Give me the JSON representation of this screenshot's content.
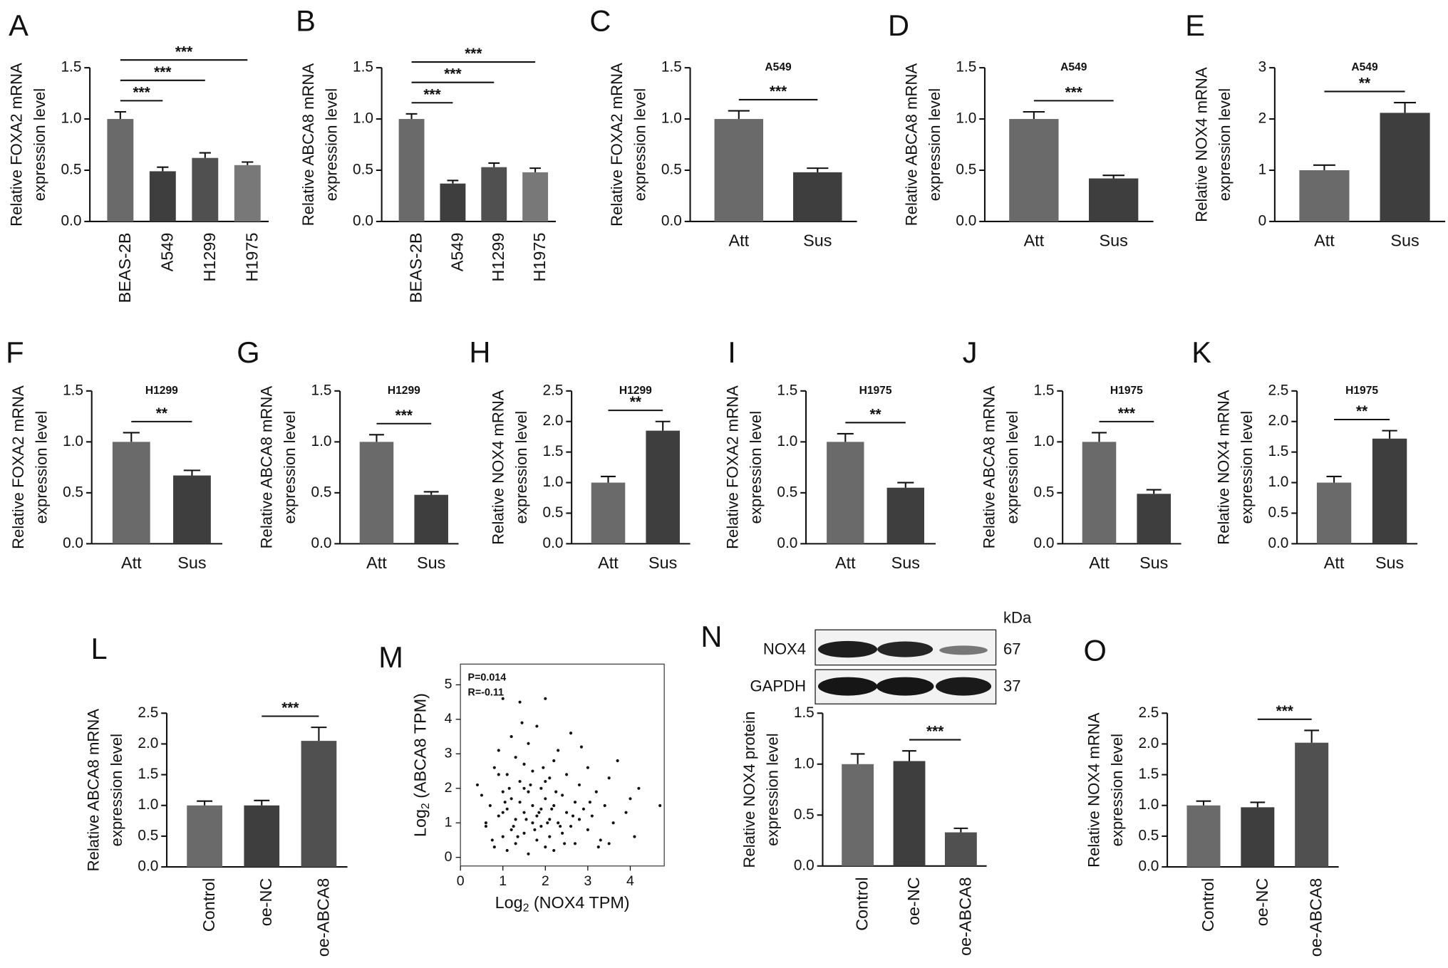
{
  "chart_data": [
    {
      "type": "bar",
      "panel": "A",
      "y_label": [
        "Relative FOXA2 mRNA",
        "expression level"
      ],
      "categories": [
        "BEAS-2B",
        "A549",
        "H1299",
        "H1975"
      ],
      "values": [
        1.0,
        0.49,
        0.62,
        0.55
      ],
      "errors": [
        0.07,
        0.04,
        0.05,
        0.03
      ],
      "colors": [
        "#6a6a6a",
        "#3e3e3e",
        "#505050",
        "#787878"
      ],
      "ylim": [
        0,
        1.5
      ],
      "yticks": [
        {
          "value": 0,
          "label": "0.0"
        },
        0.5,
        {
          "value": 1,
          "label": "1.0"
        },
        1.5
      ],
      "comparisons": [
        {
          "groups": [
            0,
            1
          ],
          "label": "***"
        },
        {
          "groups": [
            0,
            2
          ],
          "label": "***"
        },
        {
          "groups": [
            0,
            3
          ],
          "label": "***"
        }
      ]
    },
    {
      "type": "bar",
      "panel": "B",
      "y_label": [
        "Relative ABCA8 mRNA",
        "expression level"
      ],
      "categories": [
        "BEAS-2B",
        "A549",
        "H1299",
        "H1975"
      ],
      "values": [
        1.0,
        0.37,
        0.53,
        0.48
      ],
      "errors": [
        0.05,
        0.03,
        0.04,
        0.04
      ],
      "colors": [
        "#6a6a6a",
        "#3e3e3e",
        "#505050",
        "#787878"
      ],
      "ylim": [
        0,
        1.5
      ],
      "yticks": [
        {
          "value": 0,
          "label": "0.0"
        },
        0.5,
        {
          "value": 1,
          "label": "1.0"
        },
        1.5
      ],
      "comparisons": [
        {
          "groups": [
            0,
            1
          ],
          "label": "***"
        },
        {
          "groups": [
            0,
            2
          ],
          "label": "***"
        },
        {
          "groups": [
            0,
            3
          ],
          "label": "***"
        }
      ]
    },
    {
      "type": "bar",
      "panel": "C",
      "title": "A549",
      "y_label": [
        "Relative FOXA2 mRNA",
        "expression level"
      ],
      "categories": [
        "Att",
        "Sus"
      ],
      "values": [
        1.0,
        0.48
      ],
      "errors": [
        0.08,
        0.04
      ],
      "colors": [
        "#6a6a6a",
        "#3e3e3e"
      ],
      "ylim": [
        0,
        1.5
      ],
      "yticks": [
        {
          "value": 0,
          "label": "0.0"
        },
        0.5,
        {
          "value": 1,
          "label": "1.0"
        },
        1.5
      ],
      "comparisons": [
        {
          "groups": [
            0,
            1
          ],
          "label": "***"
        }
      ]
    },
    {
      "type": "bar",
      "panel": "D",
      "title": "A549",
      "y_label": [
        "Relative ABCA8 mRNA",
        "expression level"
      ],
      "categories": [
        "Att",
        "Sus"
      ],
      "values": [
        1.0,
        0.42
      ],
      "errors": [
        0.07,
        0.03
      ],
      "colors": [
        "#6a6a6a",
        "#3e3e3e"
      ],
      "ylim": [
        0,
        1.5
      ],
      "yticks": [
        {
          "value": 0,
          "label": "0.0"
        },
        0.5,
        {
          "value": 1,
          "label": "1.0"
        },
        1.5
      ],
      "comparisons": [
        {
          "groups": [
            0,
            1
          ],
          "label": "***"
        }
      ]
    },
    {
      "type": "bar",
      "panel": "E",
      "title": "A549",
      "y_label": [
        "Relative NOX4 mRNA",
        "expression level"
      ],
      "categories": [
        "Att",
        "Sus"
      ],
      "values": [
        1.0,
        2.12
      ],
      "errors": [
        0.1,
        0.2
      ],
      "colors": [
        "#6a6a6a",
        "#3e3e3e"
      ],
      "ylim": [
        0,
        3
      ],
      "yticks": [
        0,
        1,
        2,
        3
      ],
      "comparisons": [
        {
          "groups": [
            0,
            1
          ],
          "label": "**"
        }
      ]
    },
    {
      "type": "bar",
      "panel": "F",
      "title": "H1299",
      "y_label": [
        "Relative FOXA2 mRNA",
        "expression level"
      ],
      "categories": [
        "Att",
        "Sus"
      ],
      "values": [
        1.0,
        0.67
      ],
      "errors": [
        0.09,
        0.05
      ],
      "colors": [
        "#6a6a6a",
        "#3e3e3e"
      ],
      "ylim": [
        0,
        1.5
      ],
      "yticks": [
        {
          "value": 0,
          "label": "0.0"
        },
        0.5,
        {
          "value": 1,
          "label": "1.0"
        },
        1.5
      ],
      "comparisons": [
        {
          "groups": [
            0,
            1
          ],
          "label": "**"
        }
      ]
    },
    {
      "type": "bar",
      "panel": "G",
      "title": "H1299",
      "y_label": [
        "Relative ABCA8 mRNA",
        "expression level"
      ],
      "categories": [
        "Att",
        "Sus"
      ],
      "values": [
        1.0,
        0.48
      ],
      "errors": [
        0.07,
        0.03
      ],
      "colors": [
        "#6a6a6a",
        "#3e3e3e"
      ],
      "ylim": [
        0,
        1.5
      ],
      "yticks": [
        {
          "value": 0,
          "label": "0.0"
        },
        0.5,
        {
          "value": 1,
          "label": "1.0"
        },
        1.5
      ],
      "comparisons": [
        {
          "groups": [
            0,
            1
          ],
          "label": "***"
        }
      ]
    },
    {
      "type": "bar",
      "panel": "H",
      "title": "H1299",
      "y_label": [
        "Relative NOX4 mRNA",
        "expression level"
      ],
      "categories": [
        "Att",
        "Sus"
      ],
      "values": [
        1.0,
        1.85
      ],
      "errors": [
        0.1,
        0.15
      ],
      "colors": [
        "#6a6a6a",
        "#3e3e3e"
      ],
      "ylim": [
        0,
        2.5
      ],
      "yticks": [
        {
          "value": 0,
          "label": "0.0"
        },
        0.5,
        {
          "value": 1,
          "label": "1.0"
        },
        1.5,
        {
          "value": 2,
          "label": "2.0"
        },
        2.5
      ],
      "comparisons": [
        {
          "groups": [
            0,
            1
          ],
          "label": "**"
        }
      ]
    },
    {
      "type": "bar",
      "panel": "I",
      "title": "H1975",
      "y_label": [
        "Relative FOXA2 mRNA",
        "expression level"
      ],
      "categories": [
        "Att",
        "Sus"
      ],
      "values": [
        1.0,
        0.55
      ],
      "errors": [
        0.08,
        0.05
      ],
      "colors": [
        "#6a6a6a",
        "#3e3e3e"
      ],
      "ylim": [
        0,
        1.5
      ],
      "yticks": [
        {
          "value": 0,
          "label": "0.0"
        },
        0.5,
        {
          "value": 1,
          "label": "1.0"
        },
        1.5
      ],
      "comparisons": [
        {
          "groups": [
            0,
            1
          ],
          "label": "**"
        }
      ]
    },
    {
      "type": "bar",
      "panel": "J",
      "title": "H1975",
      "y_label": [
        "Relative ABCA8 mRNA",
        "expression level"
      ],
      "categories": [
        "Att",
        "Sus"
      ],
      "values": [
        1.0,
        0.49
      ],
      "errors": [
        0.09,
        0.04
      ],
      "colors": [
        "#6a6a6a",
        "#3e3e3e"
      ],
      "ylim": [
        0,
        1.5
      ],
      "yticks": [
        {
          "value": 0,
          "label": "0.0"
        },
        0.5,
        {
          "value": 1,
          "label": "1.0"
        },
        1.5
      ],
      "comparisons": [
        {
          "groups": [
            0,
            1
          ],
          "label": "***"
        }
      ]
    },
    {
      "type": "bar",
      "panel": "K",
      "title": "H1975",
      "y_label": [
        "Relative NOX4 mRNA",
        "expression level"
      ],
      "categories": [
        "Att",
        "Sus"
      ],
      "values": [
        1.0,
        1.72
      ],
      "errors": [
        0.1,
        0.13
      ],
      "colors": [
        "#6a6a6a",
        "#3e3e3e"
      ],
      "ylim": [
        0,
        2.5
      ],
      "yticks": [
        {
          "value": 0,
          "label": "0.0"
        },
        0.5,
        {
          "value": 1,
          "label": "1.0"
        },
        1.5,
        {
          "value": 2,
          "label": "2.0"
        },
        2.5
      ],
      "comparisons": [
        {
          "groups": [
            0,
            1
          ],
          "label": "**"
        }
      ]
    },
    {
      "type": "bar",
      "panel": "L",
      "y_label": [
        "Relative ABCA8 mRNA",
        "expression level"
      ],
      "categories": [
        "Control",
        "oe-NC",
        "oe-ABCA8"
      ],
      "values": [
        1.0,
        1.0,
        2.05
      ],
      "errors": [
        0.07,
        0.08,
        0.22
      ],
      "colors": [
        "#6a6a6a",
        "#3e3e3e",
        "#505050"
      ],
      "ylim": [
        0,
        2.5
      ],
      "yticks": [
        {
          "value": 0,
          "label": "0.0"
        },
        0.5,
        {
          "value": 1,
          "label": "1.0"
        },
        1.5,
        {
          "value": 2,
          "label": "2.0"
        },
        2.5
      ],
      "comparisons": [
        {
          "groups": [
            1,
            2
          ],
          "label": "***"
        }
      ]
    },
    {
      "type": "scatter",
      "panel": "M",
      "annotations": [
        "P=0.014",
        "R=-0.11"
      ],
      "x_label": [
        "Log",
        "2",
        " (NOX4 TPM)"
      ],
      "y_label": [
        "Log",
        "2",
        " (ABCA8 TPM)"
      ],
      "x": [
        0.4,
        0.5,
        0.6,
        0.7,
        0.8,
        0.8,
        0.9,
        0.9,
        1.0,
        1.0,
        1.0,
        1.1,
        1.1,
        1.1,
        1.2,
        1.2,
        1.2,
        1.3,
        1.3,
        1.3,
        1.4,
        1.4,
        1.4,
        1.5,
        1.5,
        1.5,
        1.6,
        1.6,
        1.6,
        1.7,
        1.7,
        1.7,
        1.8,
        1.8,
        1.8,
        1.9,
        1.9,
        1.9,
        2.0,
        2.0,
        2.0,
        2.1,
        2.1,
        2.1,
        2.2,
        2.2,
        2.2,
        2.3,
        2.3,
        2.4,
        2.4,
        2.5,
        2.5,
        2.6,
        2.6,
        2.7,
        2.7,
        2.8,
        2.8,
        2.9,
        3.0,
        3.0,
        3.1,
        3.2,
        3.3,
        3.4,
        3.5,
        3.6,
        3.7,
        3.9,
        4.0,
        4.1,
        4.2,
        4.7,
        0.6,
        0.9,
        1.05,
        1.25,
        1.45,
        1.65,
        1.85,
        2.05,
        2.25,
        2.45,
        2.65,
        2.85,
        3.05,
        3.25,
        1.15,
        1.35,
        1.55,
        1.75,
        1.95,
        2.15,
        0.75,
        1.0,
        1.5,
        2.0,
        2.35,
        3.5
      ],
      "values": [
        2.1,
        1.8,
        0.9,
        1.5,
        2.6,
        0.3,
        1.2,
        3.1,
        0.6,
        1.9,
        4.6,
        0.2,
        1.4,
        2.4,
        0.8,
        1.7,
        3.5,
        1.1,
        2.9,
        0.4,
        1.6,
        2.2,
        4.5,
        0.7,
        1.3,
        2.7,
        0.1,
        1.9,
        3.3,
        1.0,
        1.5,
        2.5,
        0.5,
        1.2,
        3.8,
        0.9,
        2.0,
        1.4,
        0.3,
        1.7,
        4.6,
        1.1,
        2.3,
        0.6,
        1.5,
        2.8,
        0.2,
        1.0,
        3.1,
        1.8,
        0.7,
        1.3,
        2.4,
        0.9,
        3.6,
        1.6,
        0.4,
        2.1,
        1.1,
        1.4,
        0.8,
        2.6,
        1.2,
        1.9,
        0.5,
        1.5,
        2.3,
        1.0,
        2.8,
        1.3,
        1.7,
        0.6,
        2.0,
        1.5,
        1.0,
        2.4,
        1.6,
        0.9,
        3.9,
        2.1,
        1.3,
        1.0,
        1.9,
        0.4,
        1.2,
        3.2,
        1.6,
        0.3,
        2.0,
        0.6,
        1.1,
        0.8,
        2.6,
        1.4,
        0.5,
        1.3,
        2.0,
        2.2,
        0.9,
        0.4
      ],
      "color": "#111111",
      "xlim": [
        0,
        4.8
      ],
      "ylim": [
        -0.25,
        5.6
      ],
      "xticks": [
        0,
        1,
        2,
        3,
        4
      ],
      "yticks": [
        0,
        1,
        2,
        3,
        4,
        5
      ]
    },
    {
      "type": "bar",
      "panel": "N",
      "y_label": [
        "Relative NOX4 protein",
        "expression level"
      ],
      "blot": {
        "unit": "kDa",
        "rows": [
          {
            "name": "NOX4",
            "size": 67
          },
          {
            "name": "GAPDH",
            "size": 37
          }
        ]
      },
      "categories": [
        "Control",
        "oe-NC",
        "oe-ABCA8"
      ],
      "values": [
        1.0,
        1.03,
        0.33
      ],
      "errors": [
        0.1,
        0.1,
        0.04
      ],
      "colors": [
        "#6a6a6a",
        "#3e3e3e",
        "#505050"
      ],
      "ylim": [
        0,
        1.5
      ],
      "yticks": [
        {
          "value": 0,
          "label": "0.0"
        },
        0.5,
        {
          "value": 1,
          "label": "1.0"
        },
        1.5
      ],
      "comparisons": [
        {
          "groups": [
            1,
            2
          ],
          "label": "***"
        }
      ]
    },
    {
      "type": "bar",
      "panel": "O",
      "y_label": [
        "Relative NOX4 mRNA",
        "expression level"
      ],
      "categories": [
        "Control",
        "oe-NC",
        "oe-ABCA8"
      ],
      "values": [
        1.0,
        0.97,
        2.02
      ],
      "errors": [
        0.07,
        0.08,
        0.2
      ],
      "colors": [
        "#6a6a6a",
        "#3e3e3e",
        "#505050"
      ],
      "ylim": [
        0,
        2.5
      ],
      "yticks": [
        {
          "value": 0,
          "label": "0.0"
        },
        0.5,
        {
          "value": 1,
          "label": "1.0"
        },
        1.5,
        {
          "value": 2,
          "label": "2.0"
        },
        2.5
      ],
      "comparisons": [
        {
          "groups": [
            1,
            2
          ],
          "label": "***"
        }
      ]
    }
  ]
}
